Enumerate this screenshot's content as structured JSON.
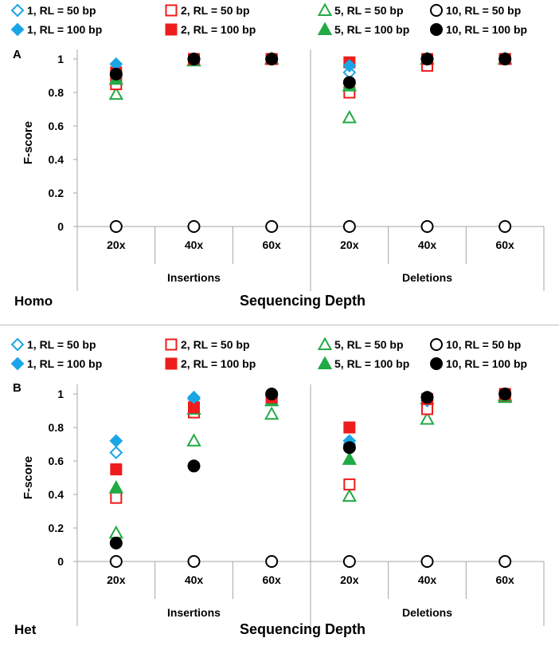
{
  "colors": {
    "blue": "#1aa6e6",
    "red": "#ee1c1c",
    "green": "#22aa44",
    "black": "#000000",
    "axis": "#a6a6a6",
    "text": "#000000"
  },
  "chart_data": [
    {
      "type": "scatter",
      "panel_label": "A",
      "zygosity_label": "Homo",
      "ylabel": "F-score",
      "xlabel": "Sequencing Depth",
      "ylim": [
        0,
        1
      ],
      "yticks": [
        "0",
        "0.2",
        "0.4",
        "0.6",
        "0.8",
        "1"
      ],
      "groups": [
        "Insertions",
        "Deletions"
      ],
      "categories": [
        "20x",
        "40x",
        "60x",
        "20x",
        "40x",
        "60x"
      ],
      "legend": [
        {
          "name": "1, RL = 50 bp",
          "color": "blue",
          "marker": "diamond",
          "filled": false
        },
        {
          "name": "2, RL = 50 bp",
          "color": "red",
          "marker": "square",
          "filled": false
        },
        {
          "name": "5, RL = 50 bp",
          "color": "green",
          "marker": "triangle",
          "filled": false
        },
        {
          "name": "10, RL = 50 bp",
          "color": "black",
          "marker": "circle",
          "filled": false
        },
        {
          "name": "1, RL = 100 bp",
          "color": "blue",
          "marker": "diamond",
          "filled": true
        },
        {
          "name": "2, RL = 100 bp",
          "color": "red",
          "marker": "square",
          "filled": true
        },
        {
          "name": "5, RL = 100 bp",
          "color": "green",
          "marker": "triangle",
          "filled": true
        },
        {
          "name": "10, RL = 100 bp",
          "color": "black",
          "marker": "circle",
          "filled": true
        }
      ],
      "series": [
        {
          "name": "1, RL = 50 bp",
          "values": [
            0.9,
            1.0,
            1.0,
            0.92,
            1.0,
            1.0
          ]
        },
        {
          "name": "2, RL = 50 bp",
          "values": [
            0.85,
            1.0,
            1.0,
            0.8,
            0.96,
            1.0
          ]
        },
        {
          "name": "5, RL = 50 bp",
          "values": [
            0.79,
            0.99,
            1.0,
            0.65,
            1.0,
            1.0
          ]
        },
        {
          "name": "10, RL = 50 bp",
          "values": [
            0,
            0,
            0,
            0,
            0,
            0
          ]
        },
        {
          "name": "1, RL = 100 bp",
          "values": [
            0.97,
            1.0,
            1.0,
            0.96,
            1.0,
            1.0
          ]
        },
        {
          "name": "2, RL = 100 bp",
          "values": [
            0.92,
            1.0,
            1.0,
            0.98,
            1.0,
            1.0
          ]
        },
        {
          "name": "5, RL = 100 bp",
          "values": [
            0.88,
            0.99,
            1.0,
            0.84,
            1.0,
            1.0
          ]
        },
        {
          "name": "10, RL = 100 bp",
          "values": [
            0.91,
            1.0,
            1.0,
            0.86,
            1.0,
            1.0
          ]
        }
      ]
    },
    {
      "type": "scatter",
      "panel_label": "B",
      "zygosity_label": "Het",
      "ylabel": "F-score",
      "xlabel": "Sequencing Depth",
      "ylim": [
        0,
        1
      ],
      "yticks": [
        "0",
        "0.2",
        "0.4",
        "0.6",
        "0.8",
        "1"
      ],
      "groups": [
        "Insertions",
        "Deletions"
      ],
      "categories": [
        "20x",
        "40x",
        "60x",
        "20x",
        "40x",
        "60x"
      ],
      "legend": [
        {
          "name": "1, RL = 50 bp",
          "color": "blue",
          "marker": "diamond",
          "filled": false
        },
        {
          "name": "2, RL = 50 bp",
          "color": "red",
          "marker": "square",
          "filled": false
        },
        {
          "name": "5, RL = 50 bp",
          "color": "green",
          "marker": "triangle",
          "filled": false
        },
        {
          "name": "10, RL = 50 bp",
          "color": "black",
          "marker": "circle",
          "filled": false
        },
        {
          "name": "1, RL = 100 bp",
          "color": "blue",
          "marker": "diamond",
          "filled": true
        },
        {
          "name": "2, RL = 100 bp",
          "color": "red",
          "marker": "square",
          "filled": true
        },
        {
          "name": "5, RL = 100 bp",
          "color": "green",
          "marker": "triangle",
          "filled": true
        },
        {
          "name": "10, RL = 100 bp",
          "color": "black",
          "marker": "circle",
          "filled": true
        }
      ],
      "series": [
        {
          "name": "1, RL = 50 bp",
          "values": [
            0.65,
            0.97,
            0.99,
            0.7,
            0.96,
            1.0
          ]
        },
        {
          "name": "2, RL = 50 bp",
          "values": [
            0.38,
            0.89,
            0.97,
            0.46,
            0.91,
            0.99
          ]
        },
        {
          "name": "5, RL = 50 bp",
          "values": [
            0.17,
            0.72,
            0.88,
            0.39,
            0.85,
            0.98
          ]
        },
        {
          "name": "10, RL = 50 bp",
          "values": [
            0,
            0,
            0,
            0,
            0,
            0
          ]
        },
        {
          "name": "1, RL = 100 bp",
          "values": [
            0.72,
            0.98,
            1.0,
            0.72,
            0.98,
            1.0
          ]
        },
        {
          "name": "2, RL = 100 bp",
          "values": [
            0.55,
            0.92,
            0.98,
            0.8,
            0.97,
            1.0
          ]
        },
        {
          "name": "5, RL = 100 bp",
          "values": [
            0.44,
            0.91,
            0.96,
            0.61,
            0.97,
            0.99
          ]
        },
        {
          "name": "10, RL = 100 bp",
          "values": [
            0.11,
            0.57,
            1.0,
            0.68,
            0.98,
            1.0
          ]
        }
      ]
    }
  ]
}
